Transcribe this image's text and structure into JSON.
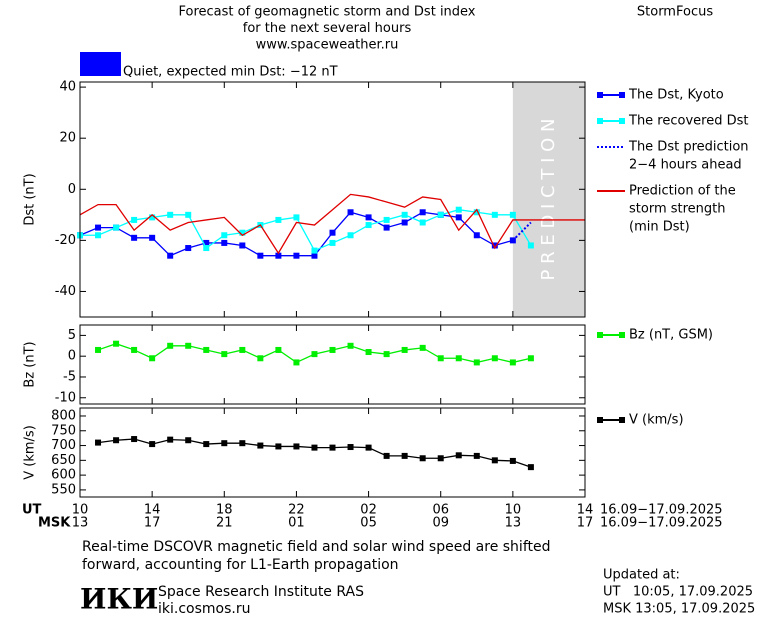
{
  "header": {
    "title": [
      "Forecast of geomagnetic storm and Dst index",
      "for the next several hours",
      "www.spaceweather.ru"
    ],
    "brand": "StormFocus",
    "status": {
      "label": "Quiet, expected min Dst: −12 nT",
      "color": "#0000ff"
    }
  },
  "chart_data": [
    {
      "type": "line",
      "y_label": "Dst (nT)",
      "xlim": [
        0,
        28
      ],
      "ylim": [
        -50,
        42
      ],
      "yticks": [
        -40,
        -20,
        0,
        20,
        40
      ],
      "prediction_region": [
        24,
        28
      ],
      "prediction_label": "P R E D I C T I O N",
      "prediction_color": "#d8d8d8",
      "series": [
        {
          "name": [
            "The Dst, Kyoto"
          ],
          "color": "#0000ff",
          "marker": "square",
          "style": "solid",
          "x": [
            0,
            1,
            2,
            3,
            4,
            5,
            6,
            7,
            8,
            9,
            10,
            11,
            12,
            13,
            14,
            15,
            16,
            17,
            18,
            19,
            20,
            21,
            22,
            23,
            24
          ],
          "values": [
            -18,
            -15,
            -15,
            -19,
            -19,
            -26,
            -23,
            -21,
            -21,
            -22,
            -26,
            -26,
            -26,
            -26,
            -17,
            -9,
            -11,
            -15,
            -13,
            -9,
            -10,
            -11,
            -18,
            -22,
            -20
          ]
        },
        {
          "name": [
            "The recovered Dst"
          ],
          "color": "#00ffff",
          "marker": "square",
          "style": "solid",
          "x": [
            0,
            1,
            2,
            3,
            4,
            5,
            6,
            7,
            8,
            9,
            10,
            11,
            12,
            13,
            14,
            15,
            16,
            17,
            18,
            19,
            20,
            21,
            22,
            23,
            24,
            25
          ],
          "values": [
            -18,
            -18,
            -15,
            -12,
            -11,
            -10,
            -10,
            -23,
            -18,
            -17,
            -14,
            -12,
            -11,
            -24,
            -21,
            -18,
            -14,
            -12,
            -10,
            -13,
            -10,
            -8,
            -9,
            -10,
            -10,
            -22
          ]
        },
        {
          "name": [
            "The Dst prediction",
            "2−4 hours ahead"
          ],
          "color": "#0000ff",
          "marker": "none",
          "style": "dotted",
          "x": [
            24,
            25
          ],
          "values": [
            -20,
            -13
          ]
        },
        {
          "name": [
            "Prediction of the",
            "storm strength",
            "(min Dst)"
          ],
          "color": "#e00000",
          "marker": "none",
          "style": "solid",
          "x": [
            0,
            1,
            2,
            3,
            4,
            5,
            6,
            7,
            8,
            9,
            10,
            11,
            12,
            13,
            14,
            15,
            16,
            17,
            18,
            19,
            20,
            21,
            22,
            23,
            24,
            25,
            28
          ],
          "values": [
            -10,
            -6,
            -6,
            -16,
            -10,
            -16,
            -13,
            -12,
            -11,
            -18,
            -14,
            -25,
            -13,
            -14,
            -8,
            -2,
            -3,
            -5,
            -7,
            -3,
            -4,
            -16,
            -8,
            -23,
            -12,
            -12,
            -12
          ]
        }
      ]
    },
    {
      "type": "line",
      "y_label": "Bz (nT)",
      "xlim": [
        0,
        28
      ],
      "ylim": [
        -11.5,
        7.5
      ],
      "yticks": [
        -10,
        -5,
        0,
        5
      ],
      "series": [
        {
          "name": [
            "Bz (nT, GSM)"
          ],
          "color": "#00ee00",
          "marker": "square",
          "style": "solid",
          "x": [
            1,
            2,
            3,
            4,
            5,
            6,
            7,
            8,
            9,
            10,
            11,
            12,
            13,
            14,
            15,
            16,
            17,
            18,
            19,
            20,
            21,
            22,
            23,
            24,
            25
          ],
          "values": [
            1.5,
            3,
            1.5,
            -0.5,
            2.5,
            2.5,
            1.5,
            0.5,
            1.5,
            -0.5,
            1.5,
            -1.5,
            0.5,
            1.5,
            2.5,
            1,
            0.5,
            1.5,
            2,
            -0.5,
            -0.5,
            -1.5,
            -0.5,
            -1.5,
            -0.5
          ]
        }
      ]
    },
    {
      "type": "line",
      "y_label": "V (km/s)",
      "xlim": [
        0,
        28
      ],
      "ylim": [
        526,
        827
      ],
      "yticks": [
        550,
        600,
        650,
        700,
        750,
        800
      ],
      "x_label": "UT",
      "x2_label": "MSK",
      "date_range": "16.09−17.09.2025",
      "xticks": [
        {
          "value": 0,
          "label": "10"
        },
        {
          "value": 4,
          "label": "14"
        },
        {
          "value": 8,
          "label": "18"
        },
        {
          "value": 12,
          "label": "22"
        },
        {
          "value": 16,
          "label": "02"
        },
        {
          "value": 20,
          "label": "06"
        },
        {
          "value": 24,
          "label": "10"
        },
        {
          "value": 28,
          "label": "14"
        }
      ],
      "xticks_msk": [
        {
          "value": 0,
          "label": "13"
        },
        {
          "value": 4,
          "label": "17"
        },
        {
          "value": 8,
          "label": "21"
        },
        {
          "value": 12,
          "label": "01"
        },
        {
          "value": 16,
          "label": "05"
        },
        {
          "value": 20,
          "label": "09"
        },
        {
          "value": 24,
          "label": "13"
        },
        {
          "value": 28,
          "label": "17"
        }
      ],
      "series": [
        {
          "name": [
            "V (km/s)"
          ],
          "color": "#000000",
          "marker": "square",
          "style": "solid",
          "x": [
            1,
            2,
            3,
            4,
            5,
            6,
            7,
            8,
            9,
            10,
            11,
            12,
            13,
            14,
            15,
            16,
            17,
            18,
            19,
            20,
            21,
            22,
            23,
            24,
            25
          ],
          "values": [
            710,
            718,
            722,
            705,
            720,
            718,
            705,
            708,
            708,
            700,
            697,
            697,
            693,
            693,
            695,
            693,
            665,
            665,
            657,
            657,
            667,
            665,
            650,
            648,
            627
          ]
        }
      ]
    }
  ],
  "footer": {
    "note": [
      "Real-time DSCOVR magnetic field and solar wind speed are shifted",
      "forward, accounting for L1-Earth propagation"
    ],
    "logo": "ИКИ",
    "institute": "Space Research Institute RAS",
    "site": "iki.cosmos.ru",
    "updated": [
      "Updated at:",
      "UT   10:05, 17.09.2025",
      "MSK 13:05, 17.09.2025"
    ]
  }
}
